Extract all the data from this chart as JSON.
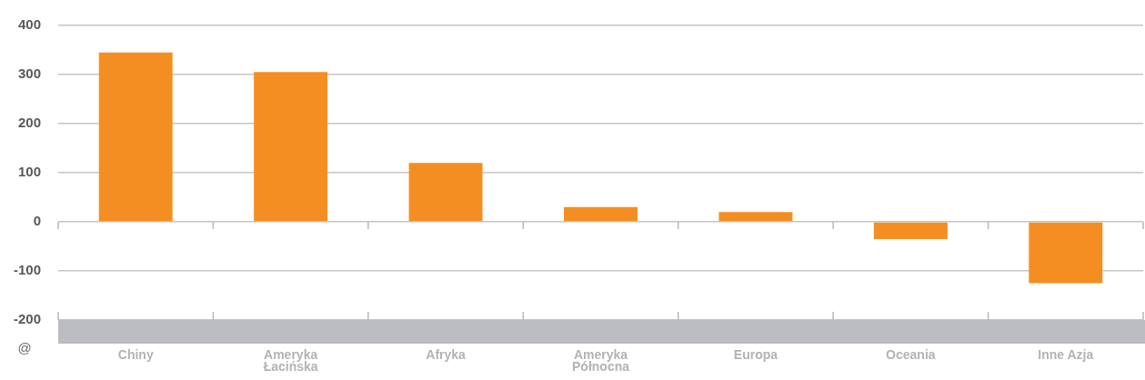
{
  "chart_data": {
    "type": "bar",
    "categories": [
      "Chiny",
      "Ameryka Łacińska",
      "Afryka",
      "Ameryka Północna",
      "Europa",
      "Oceania",
      "Inne Azja"
    ],
    "values": [
      345,
      305,
      120,
      30,
      20,
      -35,
      -125
    ],
    "color": "#f58e22",
    "ylim": [
      -200,
      400
    ],
    "yticks": [
      -200,
      -100,
      0,
      100,
      200,
      300,
      400
    ],
    "grid": "y",
    "annotations": [
      "@"
    ]
  }
}
